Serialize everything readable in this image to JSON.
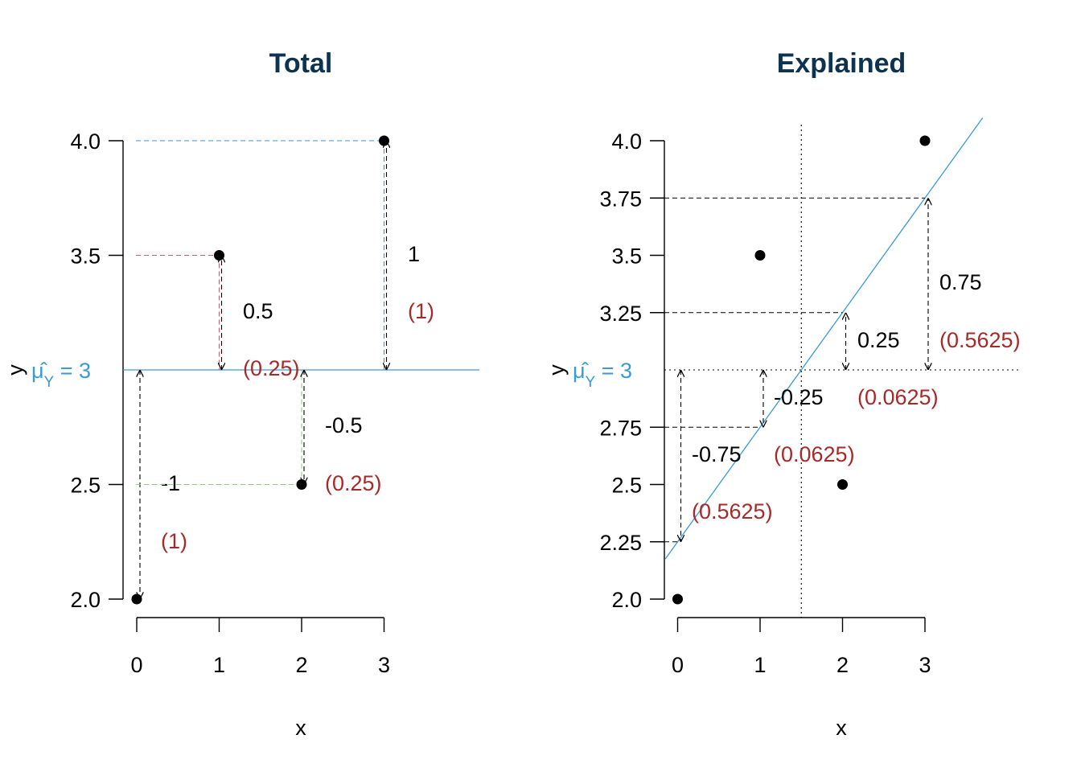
{
  "colors": {
    "title": "#0d3350",
    "mean_line": "#3a9ad9",
    "label_red": "#a52a2a",
    "seg_total_blue": "#3a9ad9",
    "seg_total_red": "#c06070",
    "seg_total_green": "#8ccf80",
    "seg_black": "#000000"
  },
  "chart_data": [
    {
      "type": "scatter",
      "title": "Total",
      "xlabel": "x",
      "ylabel": "y",
      "x_ticks": [
        "0",
        "1",
        "2",
        "3"
      ],
      "y_ticks": [
        "2.0",
        "2.5",
        "3.5",
        "4.0"
      ],
      "xlim": [
        0,
        3
      ],
      "ylim": [
        2.0,
        4.0
      ],
      "points": [
        {
          "x": 0,
          "y": 2.0
        },
        {
          "x": 1,
          "y": 3.5
        },
        {
          "x": 2,
          "y": 2.5
        },
        {
          "x": 3,
          "y": 4.0
        }
      ],
      "mean_line": {
        "y": 3,
        "label_prefix": "μ̂",
        "label_sub": "Y",
        "label_suffix": " = 3"
      },
      "deviations": [
        {
          "x": 0,
          "y": 2.0,
          "value_label": "-1",
          "square_label": "(1)"
        },
        {
          "x": 1,
          "y": 3.5,
          "value_label": "0.5",
          "square_label": "(0.25)"
        },
        {
          "x": 2,
          "y": 2.5,
          "value_label": "-0.5",
          "square_label": "(0.25)"
        },
        {
          "x": 3,
          "y": 4.0,
          "value_label": "1",
          "square_label": "(1)"
        }
      ]
    },
    {
      "type": "scatter",
      "title": "Explained",
      "xlabel": "x",
      "ylabel": "y",
      "x_ticks": [
        "0",
        "1",
        "2",
        "3"
      ],
      "y_ticks": [
        "2.0",
        "2.5",
        "3.5",
        "4.0"
      ],
      "fitted_ticks": [
        "2.25",
        "2.75",
        "3.25",
        "3.75"
      ],
      "xlim": [
        0,
        3
      ],
      "ylim": [
        2.0,
        4.0
      ],
      "points": [
        {
          "x": 0,
          "y": 2.0
        },
        {
          "x": 1,
          "y": 3.5
        },
        {
          "x": 2,
          "y": 2.5
        },
        {
          "x": 3,
          "y": 4.0
        }
      ],
      "regression_line": {
        "intercept": 2.25,
        "slope": 0.5
      },
      "x_mean": 1.5,
      "mean_line": {
        "y": 3,
        "label_prefix": "μ̂",
        "label_sub": "Y",
        "label_suffix": " = 3"
      },
      "explained": [
        {
          "x": 0,
          "fitted": 2.25,
          "value_label": "-0.75",
          "square_label": "(0.5625)"
        },
        {
          "x": 1,
          "fitted": 2.75,
          "value_label": "-0.25",
          "square_label": "(0.0625)"
        },
        {
          "x": 2,
          "fitted": 3.25,
          "value_label": "0.25",
          "square_label": "(0.0625)"
        },
        {
          "x": 3,
          "fitted": 3.75,
          "value_label": "0.75",
          "square_label": "(0.5625)"
        }
      ]
    }
  ]
}
